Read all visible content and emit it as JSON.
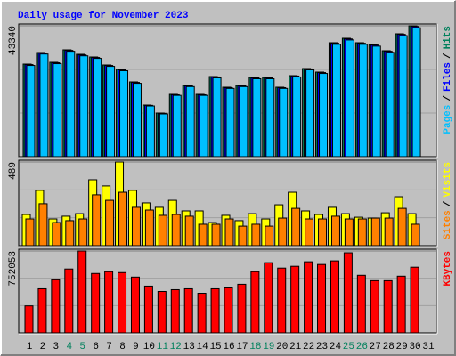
{
  "chart_data": {
    "type": "bar",
    "title": "Daily usage for November 2023",
    "title_color": "#0000FF",
    "categories": [
      "1",
      "2",
      "3",
      "4",
      "5",
      "6",
      "7",
      "8",
      "9",
      "10",
      "11",
      "12",
      "13",
      "14",
      "15",
      "16",
      "17",
      "18",
      "19",
      "20",
      "21",
      "22",
      "23",
      "24",
      "25",
      "26",
      "27",
      "28",
      "29",
      "30",
      "31"
    ],
    "highlight_categories": [
      "4",
      "5",
      "11",
      "12",
      "18",
      "19",
      "25",
      "26"
    ],
    "highlight_color": "#00805C",
    "legend_separator": "/",
    "panels": [
      {
        "ylim": [
          0,
          43340
        ],
        "yticks": [
          43340
        ],
        "series": [
          {
            "name": "Hits",
            "color": "#00805C",
            "values": [
              30660,
              34494,
              31252,
              35380,
              33905,
              33021,
              30368,
              28893,
              24766,
              17100,
              14447,
              20638,
              23586,
              20638,
              26535,
              22997,
              23586,
              26240,
              26240,
              22997,
              26830,
              29188,
              28009,
              37738,
              39212,
              37738,
              37148,
              35084,
              40686,
              43340,
              null
            ]
          },
          {
            "name": "Files",
            "color": "#0000FF",
            "values": [
              30500,
              34300,
              31100,
              35200,
              33700,
              32850,
              30200,
              28750,
              24600,
              17000,
              14350,
              20500,
              23450,
              20500,
              26400,
              22850,
              23450,
              26100,
              26100,
              22850,
              26700,
              29050,
              27850,
              37550,
              39000,
              37550,
              36950,
              34900,
              40500,
              43100,
              null
            ]
          },
          {
            "name": "Pages",
            "color": "#00C0FF",
            "values": [
              30200,
              34000,
              30800,
              34900,
              33400,
              32550,
              29900,
              28450,
              24300,
              16800,
              14150,
              20300,
              23200,
              20300,
              26100,
              22600,
              23200,
              25800,
              25800,
              22600,
              26400,
              28750,
              27550,
              37200,
              38650,
              37200,
              36600,
              34550,
              40100,
              42700,
              null
            ]
          }
        ]
      },
      {
        "ylim": [
          0,
          489
        ],
        "yticks": [
          489
        ],
        "series": [
          {
            "name": "Visits",
            "color": "#FFFF00",
            "values": [
              182,
              323,
              156,
              172,
              187,
              385,
              349,
              489,
              323,
              250,
              224,
              265,
              203,
              203,
              135,
              177,
              146,
              187,
              156,
              239,
              312,
              203,
              182,
              224,
              187,
              166,
              161,
              192,
              286,
              187,
              null
            ]
          },
          {
            "name": "Sites",
            "color": "#FF8000",
            "values": [
              156,
              245,
              135,
              146,
              156,
              297,
              265,
              312,
              224,
              208,
              177,
              182,
              172,
              125,
              125,
              156,
              114,
              125,
              114,
              161,
              218,
              156,
              156,
              172,
              156,
              156,
              161,
              161,
              218,
              125,
              null
            ]
          }
        ]
      },
      {
        "ylim": [
          0,
          752053
        ],
        "yticks": [
          752053
        ],
        "series": [
          {
            "name": "KBytes",
            "color": "#FF0000",
            "values": [
              247930,
              404950,
              487595,
              586766,
              752053,
              545445,
              561973,
              553709,
              512387,
              429745,
              380159,
              396687,
              404950,
              363630,
              404950,
              413216,
              446273,
              561973,
              644617,
              595031,
              611560,
              652880,
              628088,
              661145,
              735522,
              528917,
              479330,
              479330,
              520652,
              603288,
              null
            ]
          }
        ]
      }
    ]
  }
}
